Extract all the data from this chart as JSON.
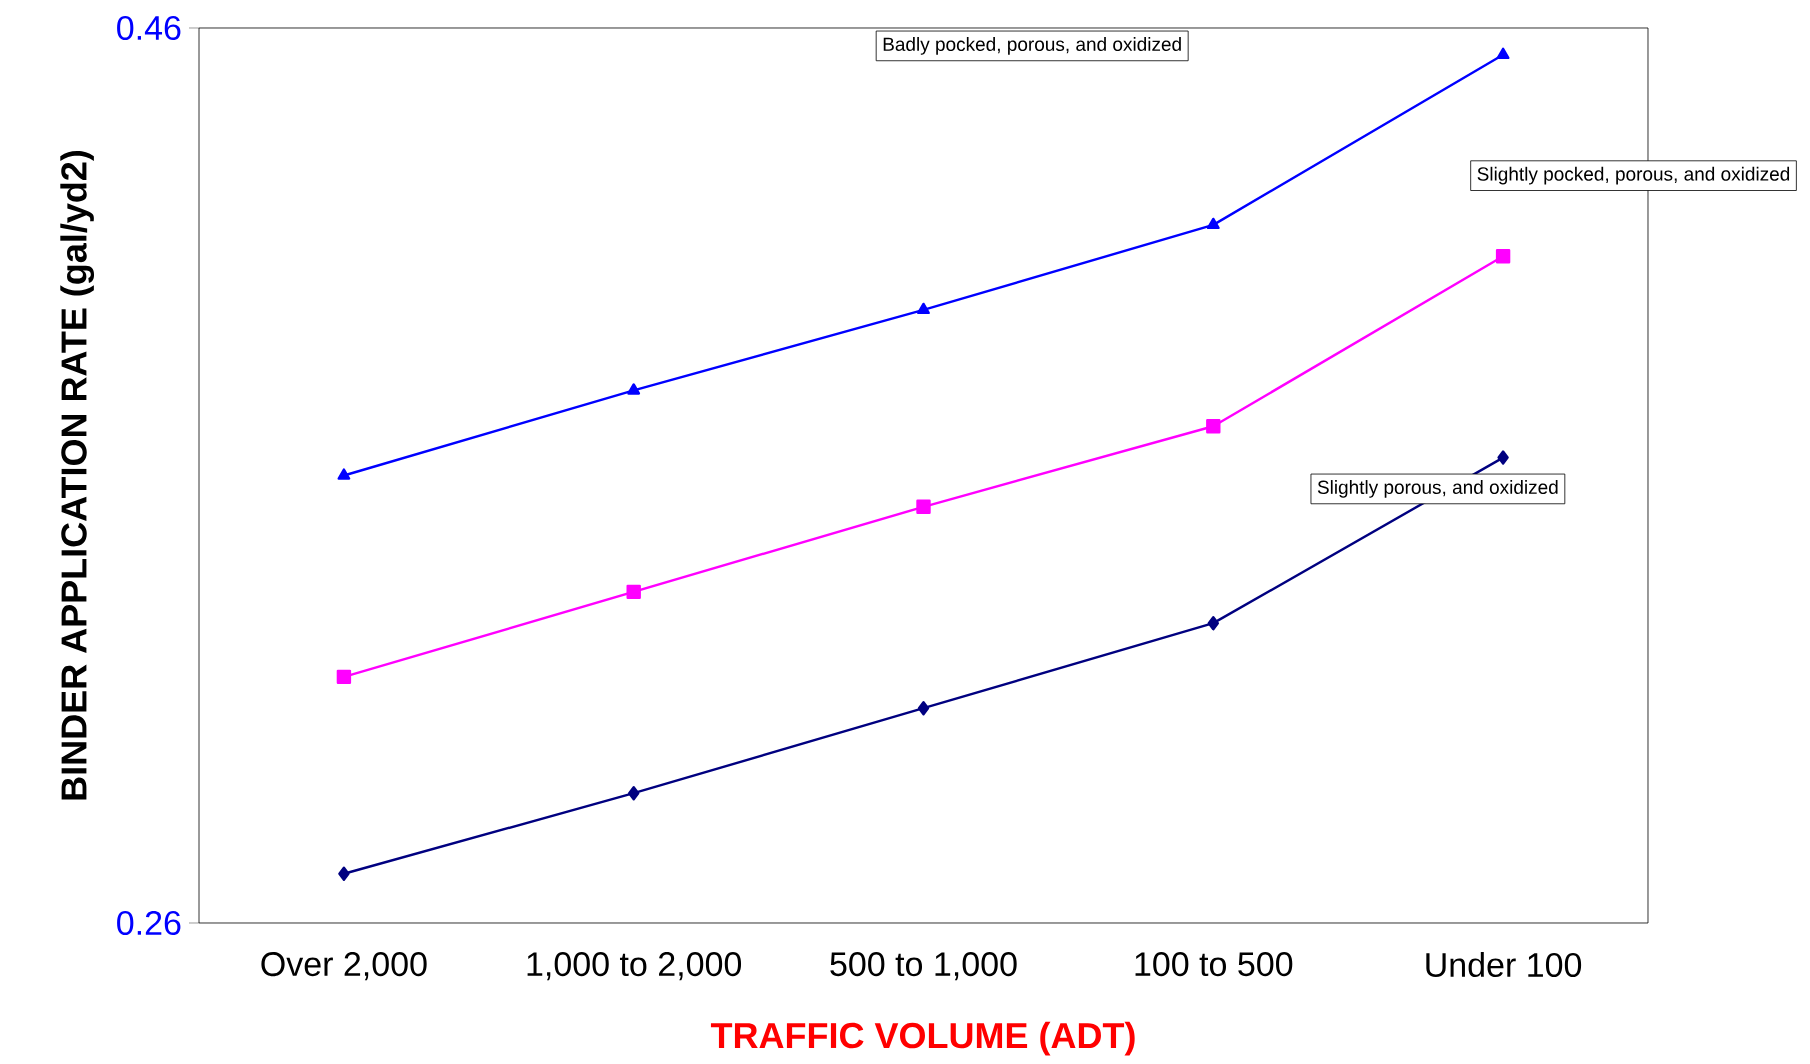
{
  "chart_data": {
    "type": "line",
    "xlabel": "TRAFFIC VOLUME (ADT)",
    "ylabel": "BINDER APPLICATION RATE (gal/yd2)",
    "categories": [
      "Over 2,000",
      "1,000 to 2,000",
      "500 to 1,000",
      "100 to 500",
      "Under 100"
    ],
    "ylim": [
      0.26,
      0.46
    ],
    "yticks": [
      0.26,
      0.46
    ],
    "grid": false,
    "line_style": "solid",
    "annotations": [
      "Badly pocked, porous, and oxidized",
      "Slightly pocked, porous, and oxidized",
      "Slightly porous, and oxidized"
    ],
    "series": [
      {
        "color": "#0000ff",
        "marker": "triangle",
        "values": [
          0.36,
          0.379,
          0.397,
          0.416,
          0.454
        ]
      },
      {
        "color": "#ff00ff",
        "marker": "square",
        "values": [
          0.315,
          0.334,
          0.353,
          0.371,
          0.409
        ]
      },
      {
        "color": "#000080",
        "marker": "diamond",
        "values": [
          0.271,
          0.289,
          0.308,
          0.327,
          0.364
        ]
      }
    ]
  }
}
